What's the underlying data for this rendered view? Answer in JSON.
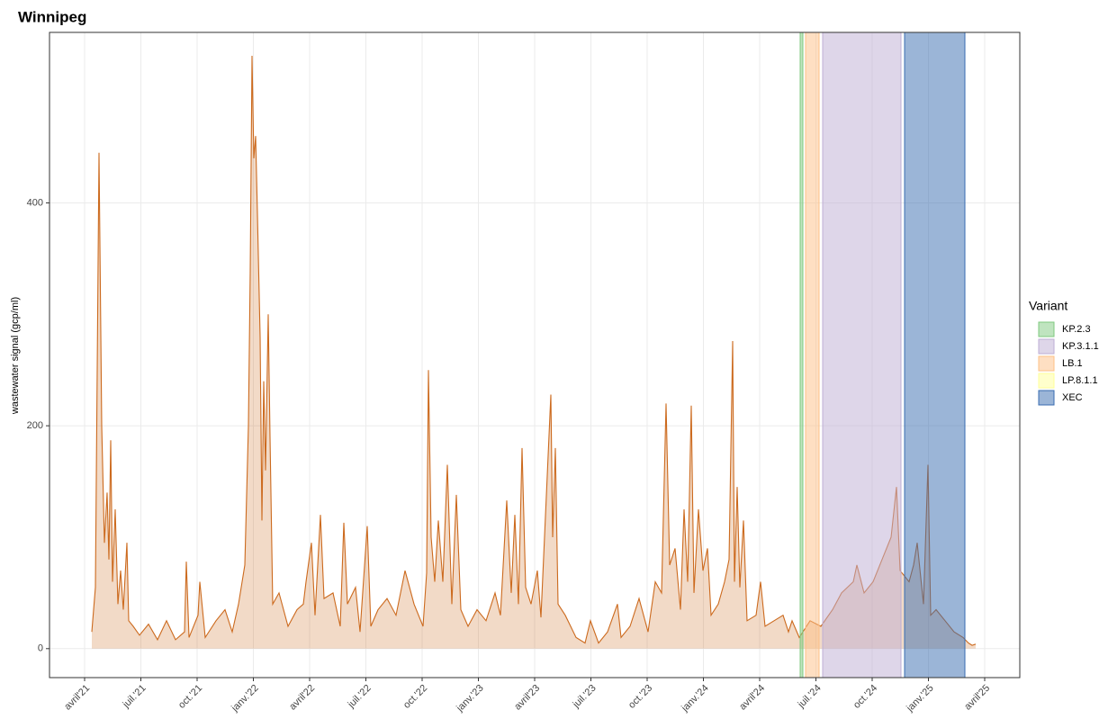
{
  "chart_data": {
    "type": "area",
    "title": "Winnipeg",
    "ylabel": "wastewater signal (gcp/ml)",
    "x": [
      2021.282,
      2021.298,
      2021.314,
      2021.326,
      2021.338,
      2021.35,
      2021.358,
      2021.366,
      2021.374,
      2021.386,
      2021.398,
      2021.41,
      2021.422,
      2021.438,
      2021.446,
      2021.466,
      2021.494,
      2021.534,
      2021.574,
      2021.614,
      2021.654,
      2021.694,
      2021.702,
      2021.714,
      2021.754,
      2021.762,
      2021.786,
      2021.834,
      2021.874,
      2021.906,
      2021.934,
      2021.962,
      2021.978,
      2021.986,
      2021.994,
      2022.002,
      2022.01,
      2022.018,
      2022.03,
      2022.038,
      2022.046,
      2022.054,
      2022.066,
      2022.074,
      2022.086,
      2022.114,
      2022.154,
      2022.194,
      2022.222,
      2022.234,
      2022.258,
      2022.274,
      2022.298,
      2022.314,
      2022.354,
      2022.386,
      2022.402,
      2022.418,
      2022.454,
      2022.474,
      2022.506,
      2022.522,
      2022.554,
      2022.594,
      2022.634,
      2022.674,
      2022.714,
      2022.754,
      2022.77,
      2022.778,
      2022.79,
      2022.806,
      2022.822,
      2022.842,
      2022.862,
      2022.882,
      2022.902,
      2022.922,
      2022.954,
      2022.994,
      2023.034,
      2023.074,
      2023.098,
      2023.126,
      2023.146,
      2023.162,
      2023.178,
      2023.194,
      2023.21,
      2023.234,
      2023.262,
      2023.278,
      2023.322,
      2023.33,
      2023.342,
      2023.354,
      2023.386,
      2023.434,
      2023.474,
      2023.498,
      2023.534,
      2023.574,
      2023.618,
      2023.634,
      2023.674,
      2023.714,
      2023.754,
      2023.786,
      2023.814,
      2023.834,
      2023.85,
      2023.874,
      2023.898,
      2023.914,
      2023.93,
      2023.946,
      2023.958,
      2023.978,
      2023.998,
      2024.018,
      2024.034,
      2024.066,
      2024.094,
      2024.114,
      2024.13,
      2024.138,
      2024.15,
      2024.162,
      2024.178,
      2024.194,
      2024.234,
      2024.254,
      2024.274,
      2024.314,
      2024.354,
      2024.378,
      2024.394,
      2024.426,
      2024.474,
      2024.522,
      2024.574,
      2024.614,
      2024.666,
      2024.682,
      2024.714,
      2024.754,
      2024.794,
      2024.834,
      2024.858,
      2024.874,
      2024.914,
      2024.934,
      2024.95,
      2024.978,
      2024.998,
      2025.01,
      2025.034,
      2025.074,
      2025.114,
      2025.154,
      2025.178,
      2025.194,
      2025.21
    ],
    "series": [
      {
        "color": "#cc6a1e",
        "values": [
          15,
          55,
          445,
          200,
          95,
          140,
          80,
          187,
          60,
          125,
          40,
          70,
          35,
          95,
          25,
          20,
          12,
          22,
          8,
          25,
          8,
          15,
          78,
          10,
          30,
          60,
          10,
          25,
          35,
          15,
          40,
          75,
          200,
          338,
          532,
          440,
          460,
          390,
          280,
          115,
          240,
          160,
          300,
          190,
          40,
          50,
          20,
          35,
          40,
          60,
          95,
          30,
          120,
          45,
          50,
          20,
          113,
          40,
          55,
          15,
          110,
          20,
          35,
          45,
          30,
          70,
          40,
          20,
          68,
          250,
          100,
          60,
          115,
          60,
          165,
          40,
          138,
          35,
          20,
          35,
          25,
          50,
          30,
          133,
          50,
          120,
          40,
          180,
          55,
          40,
          70,
          28,
          228,
          100,
          180,
          40,
          30,
          10,
          5,
          25,
          5,
          15,
          40,
          10,
          20,
          45,
          15,
          60,
          50,
          220,
          75,
          90,
          35,
          125,
          60,
          218,
          50,
          125,
          70,
          90,
          30,
          40,
          60,
          80,
          276,
          60,
          145,
          55,
          115,
          25,
          30,
          60,
          20,
          25,
          30,
          15,
          25,
          10,
          25,
          20,
          35,
          50,
          60,
          75,
          50,
          60,
          80,
          100,
          145,
          70,
          60,
          75,
          95,
          40,
          165,
          30,
          35,
          25,
          15,
          10,
          5,
          3,
          4
        ]
      }
    ],
    "xlim": [
      2021.094,
      2025.406
    ],
    "xticks": [
      {
        "value": 2021.25,
        "label": "avril'21"
      },
      {
        "value": 2021.5,
        "label": "juil.'21"
      },
      {
        "value": 2021.75,
        "label": "oct.'21"
      },
      {
        "value": 2022.0,
        "label": "janv.'22"
      },
      {
        "value": 2022.25,
        "label": "avril'22"
      },
      {
        "value": 2022.5,
        "label": "juil.'22"
      },
      {
        "value": 2022.75,
        "label": "oct.'22"
      },
      {
        "value": 2023.0,
        "label": "janv.'23"
      },
      {
        "value": 2023.25,
        "label": "avril'23"
      },
      {
        "value": 2023.5,
        "label": "juil.'23"
      },
      {
        "value": 2023.75,
        "label": "oct.'23"
      },
      {
        "value": 2024.0,
        "label": "janv.'24"
      },
      {
        "value": 2024.25,
        "label": "avril'24"
      },
      {
        "value": 2024.5,
        "label": "juil.'24"
      },
      {
        "value": 2024.75,
        "label": "oct.'24"
      },
      {
        "value": 2025.0,
        "label": "janv.'25"
      },
      {
        "value": 2025.25,
        "label": "avril'25"
      }
    ],
    "ylim": [
      -26,
      553
    ],
    "yticks": [
      0,
      200,
      400
    ],
    "grid": true,
    "legend_title": "Variant",
    "variants": [
      {
        "name": "KP.2.3",
        "color": "#7fc97f",
        "start": 2024.43,
        "end": 2024.442
      },
      {
        "name": "KP.3.1.1",
        "color": "#beaed4",
        "start": 2024.53,
        "end": 2024.878
      },
      {
        "name": "LB.1",
        "color": "#fdc086",
        "start": 2024.454,
        "end": 2024.514
      },
      {
        "name": "LP.8.1.1",
        "color": "#ffff99"
      },
      {
        "name": "XEC",
        "color": "#386cb0",
        "start": 2024.894,
        "end": 2025.162
      }
    ]
  }
}
